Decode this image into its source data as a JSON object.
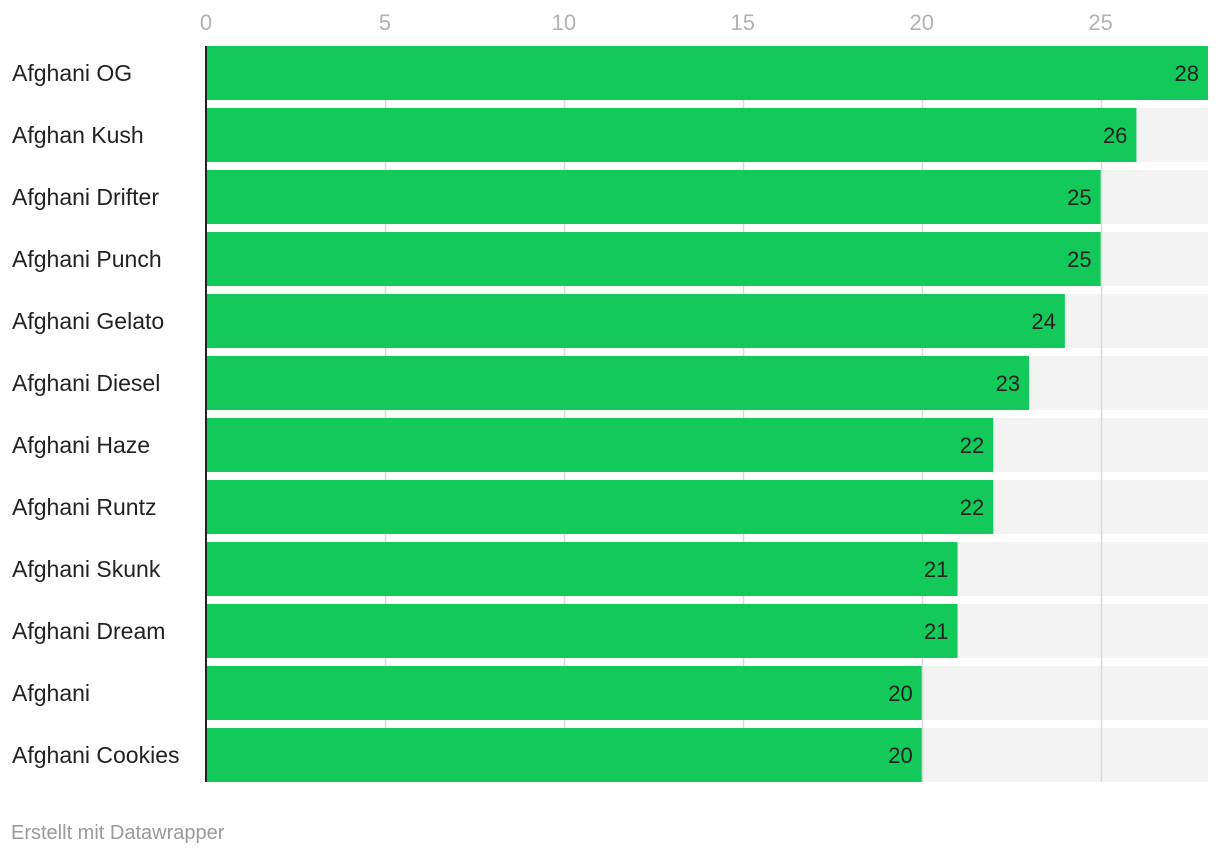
{
  "chart_data": {
    "type": "bar",
    "orientation": "horizontal",
    "title": "",
    "xlabel": "",
    "ylabel": "",
    "xlim": [
      0,
      28
    ],
    "x_ticks": [
      0,
      5,
      10,
      15,
      20,
      25
    ],
    "x_tick_labels": [
      "0",
      "5",
      "10",
      "15",
      "20",
      "25"
    ],
    "grid": true,
    "categories": [
      "Afghani OG",
      "Afghan Kush",
      "Afghani Drifter",
      "Afghani Punch",
      "Afghani Gelato",
      "Afghani Diesel",
      "Afghani Haze",
      "Afghani Runtz",
      "Afghani Skunk",
      "Afghani Dream",
      "Afghani",
      "Afghani Cookies"
    ],
    "values": [
      28,
      26,
      25,
      25,
      24,
      23,
      22,
      22,
      21,
      21,
      20,
      20
    ],
    "value_labels": [
      "28",
      "26",
      "25",
      "25",
      "24",
      "23",
      "22",
      "22",
      "21",
      "21",
      "20",
      "20"
    ]
  },
  "colors": {
    "bar": "#13c95a",
    "bar_background": "#f3f3f3",
    "gridline": "#d9d9d9",
    "axis_line": "#222222",
    "tick_label": "#b3b3b3",
    "category_label": "#222222",
    "value_label": "#222222",
    "footer": "#9a9a9a"
  },
  "footer": {
    "credit": "Erstellt mit Datawrapper"
  }
}
